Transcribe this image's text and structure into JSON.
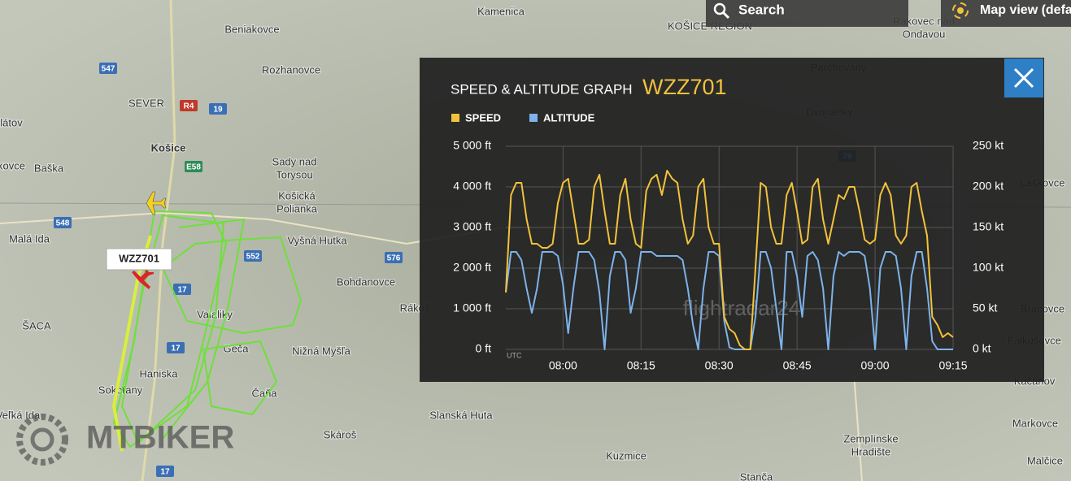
{
  "search": "Search",
  "map_view": "Map view (defa",
  "callsign_tag": "WZZ701",
  "watermark": "MTBIKER",
  "chart_watermark": "flightradar24",
  "map_labels": [
    "Beniakovce",
    "Rozhanovce",
    "Košice",
    "SEVER",
    "Baška",
    "Sady nad",
    "Torysou",
    "Košická",
    "Polianka",
    "Vyšná Hutka",
    "Malá Ida",
    "Bohdanovce",
    "Rákoš",
    "ŠACA",
    "Valaliky",
    "Geča",
    "Nižná Myšľa",
    "Haniska",
    "Čaňa",
    "Sokoľany",
    "Slanská Huta",
    "Skároš",
    "Veľká Ida",
    "Kuzmice",
    "Zemplínske",
    "Hradište",
    "Markovce",
    "Malčice",
    "Kačanov",
    "Falkušovce",
    "Bracovce",
    "Laškovce",
    "Parchovany",
    "Dvorianky",
    "Rakovec nad",
    "Ondavou",
    "Kamenica",
    "KOŠICE REGION",
    "Stanča",
    "látov",
    "kovce"
  ],
  "road_labels": [
    "547",
    "R4",
    "19",
    "E58",
    "548",
    "552",
    "17",
    "17",
    "576",
    "79",
    "17"
  ],
  "chart_data": {
    "type": "line",
    "title": "SPEED & ALTITUDE GRAPH",
    "subtitle": "WZZ701",
    "x_note": "UTC",
    "x": [
      "07:49",
      "07:50",
      "07:51",
      "07:52",
      "07:53",
      "07:54",
      "07:55",
      "07:56",
      "07:57",
      "07:58",
      "07:59",
      "08:00",
      "08:01",
      "08:02",
      "08:03",
      "08:04",
      "08:05",
      "08:06",
      "08:07",
      "08:08",
      "08:09",
      "08:10",
      "08:11",
      "08:12",
      "08:13",
      "08:14",
      "08:15",
      "08:16",
      "08:17",
      "08:18",
      "08:19",
      "08:20",
      "08:21",
      "08:22",
      "08:23",
      "08:24",
      "08:25",
      "08:26",
      "08:27",
      "08:28",
      "08:29",
      "08:30",
      "08:31",
      "08:32",
      "08:33",
      "08:34",
      "08:35",
      "08:36",
      "08:37",
      "08:38",
      "08:39",
      "08:40",
      "08:41",
      "08:42",
      "08:43",
      "08:44",
      "08:45",
      "08:46",
      "08:47",
      "08:48",
      "08:49",
      "08:50",
      "08:51",
      "08:52",
      "08:53",
      "08:54",
      "08:55",
      "08:56",
      "08:57",
      "08:58",
      "08:59",
      "09:00",
      "09:01",
      "09:02",
      "09:03",
      "09:04",
      "09:05",
      "09:06",
      "09:07",
      "09:08",
      "09:09",
      "09:10",
      "09:11",
      "09:12",
      "09:13",
      "09:14",
      "09:15"
    ],
    "xlim": [
      "07:49",
      "09:15"
    ],
    "xticks": [
      "08:00",
      "08:15",
      "08:30",
      "08:45",
      "09:00",
      "09:15"
    ],
    "series": [
      {
        "name": "SPEED",
        "color": "#f2c23a",
        "axis": "y2",
        "values": [
          70,
          190,
          205,
          205,
          160,
          130,
          130,
          125,
          125,
          130,
          180,
          205,
          210,
          170,
          130,
          130,
          135,
          200,
          215,
          170,
          130,
          130,
          190,
          210,
          160,
          130,
          125,
          195,
          210,
          215,
          190,
          220,
          210,
          205,
          160,
          130,
          140,
          200,
          210,
          150,
          130,
          130,
          40,
          25,
          20,
          5,
          0,
          0,
          100,
          205,
          200,
          150,
          130,
          130,
          190,
          205,
          170,
          130,
          135,
          200,
          210,
          160,
          130,
          160,
          190,
          185,
          200,
          200,
          170,
          135,
          130,
          135,
          190,
          205,
          190,
          140,
          130,
          140,
          200,
          205,
          170,
          140,
          40,
          30,
          15,
          20,
          15
        ]
      },
      {
        "name": "ALTITUDE",
        "color": "#7db3ea",
        "values": [
          1400,
          2400,
          2400,
          2200,
          1500,
          900,
          1500,
          2400,
          2400,
          2400,
          2300,
          1600,
          400,
          1500,
          2400,
          2400,
          2400,
          2200,
          1400,
          0,
          1800,
          2400,
          2400,
          2200,
          900,
          1500,
          2400,
          2400,
          2400,
          2300,
          2300,
          2300,
          2300,
          2300,
          2200,
          1500,
          600,
          0,
          1500,
          2400,
          2400,
          2300,
          700,
          50,
          0,
          0,
          0,
          0,
          800,
          2400,
          2400,
          2000,
          1000,
          0,
          2400,
          2400,
          1800,
          800,
          2300,
          2400,
          2200,
          1500,
          0,
          1800,
          2400,
          2300,
          2400,
          2400,
          2400,
          2300,
          1500,
          0,
          2000,
          2400,
          2400,
          2300,
          1500,
          0,
          1800,
          2400,
          2400,
          1500,
          200,
          0,
          0,
          0,
          0
        ]
      }
    ],
    "ylim": [
      0,
      5000
    ],
    "yticks": [
      {
        "value": 0,
        "label": "0 ft"
      },
      {
        "value": 1000,
        "label": "1 000 ft"
      },
      {
        "value": 2000,
        "label": "2 000 ft"
      },
      {
        "value": 3000,
        "label": "3 000 ft"
      },
      {
        "value": 4000,
        "label": "4 000 ft"
      },
      {
        "value": 5000,
        "label": "5 000 ft"
      }
    ],
    "y2lim": [
      0,
      250
    ],
    "y2ticks": [
      {
        "value": 0,
        "label": "0 kt"
      },
      {
        "value": 50,
        "label": "50 kt"
      },
      {
        "value": 100,
        "label": "100 kt"
      },
      {
        "value": 150,
        "label": "150 kt"
      },
      {
        "value": 200,
        "label": "200 kt"
      },
      {
        "value": 250,
        "label": "250 kt"
      }
    ],
    "grid": true
  }
}
